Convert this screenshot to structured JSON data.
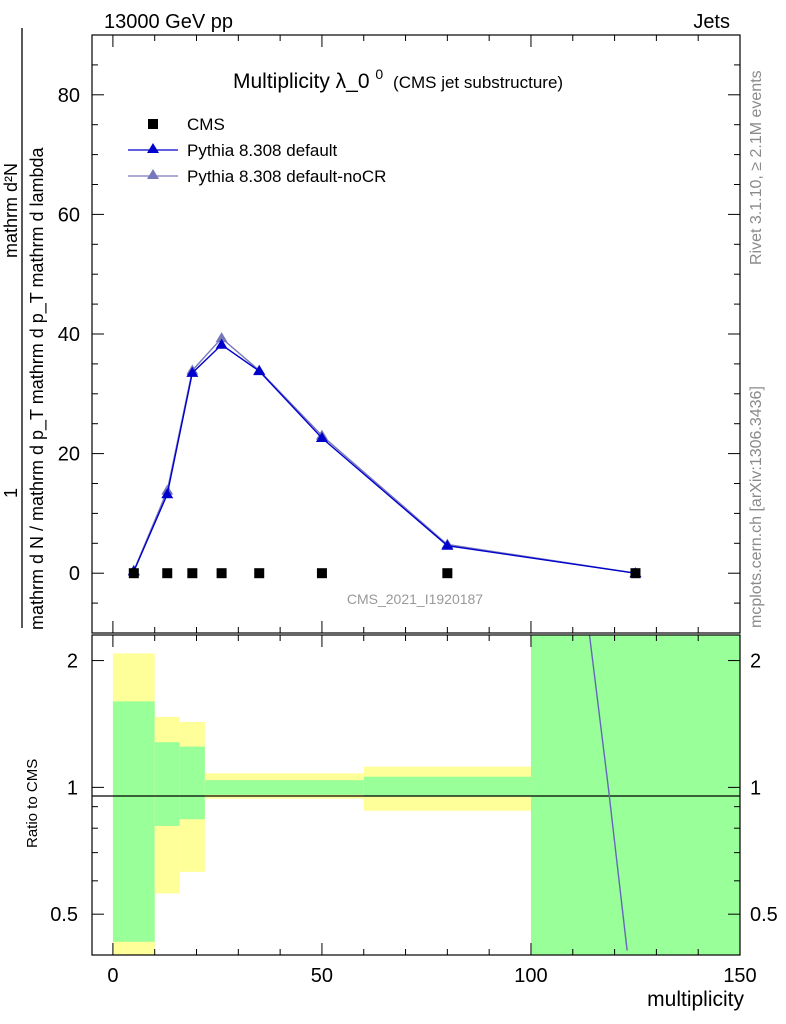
{
  "header": {
    "energy_label": "13000 GeV pp",
    "category_label": "Jets"
  },
  "side_text": {
    "rivet": "Rivet 3.1.10, ≥ 2.1M events",
    "mcplots": "mcplots.cern.ch [arXiv:1306.3436]"
  },
  "analysis_id": "CMS_2021_I1920187",
  "colors": {
    "data": "#000000",
    "pythia_default": "#0000cc",
    "pythia_nocr": "#7777bb",
    "band_inner": "#99ff99",
    "band_outer": "#ffff99"
  },
  "chart_data": [
    {
      "type": "line",
      "title_main": "Multiplicity λ_0",
      "title_sup": "0",
      "title_sub": "(CMS jet substructure)",
      "ylabel_top": "1",
      "ylabel_den": "mathrm d N / mathrm d p_T mathrm d p_T mathrm d lambda",
      "ylabel_num": "mathrm d²N",
      "xlim": [
        -5,
        150
      ],
      "ylim": [
        -10,
        90
      ],
      "yticks": [
        0,
        20,
        40,
        60,
        80
      ],
      "legend_position": "top-left",
      "series": [
        {
          "name": "CMS",
          "marker": "square",
          "x": [
            5,
            13,
            19,
            26,
            35,
            50,
            80,
            125
          ],
          "y": [
            0,
            0,
            0,
            0,
            0,
            0,
            0,
            0
          ]
        },
        {
          "name": "Pythia 8.308 default",
          "marker": "triangle",
          "x": [
            5,
            13,
            19,
            26,
            35,
            50,
            80,
            125
          ],
          "y": [
            0.3,
            13.2,
            33.5,
            38.2,
            33.8,
            22.6,
            4.6,
            0.0
          ]
        },
        {
          "name": "Pythia 8.308 default-noCR",
          "marker": "triangle",
          "x": [
            5,
            13,
            19,
            26,
            35,
            50,
            80,
            125
          ],
          "y": [
            0.4,
            13.8,
            33.9,
            39.3,
            33.9,
            23.0,
            4.8,
            0.0
          ]
        }
      ]
    },
    {
      "type": "area",
      "ylabel": "Ratio to CMS",
      "xlabel": "multiplicity",
      "xlim": [
        -5,
        150
      ],
      "ylim": [
        0.4,
        2.3
      ],
      "ytick_labels": [
        "0.5",
        "1",
        "2"
      ],
      "xtick_labels": [
        "0",
        "50",
        "100",
        "150"
      ],
      "bands": [
        {
          "x0": 0,
          "x1": 10,
          "inner": [
            0.43,
            1.6
          ],
          "outer": [
            0.35,
            2.08
          ]
        },
        {
          "x0": 10,
          "x1": 16,
          "inner": [
            0.81,
            1.28
          ],
          "outer": [
            0.56,
            1.47
          ]
        },
        {
          "x0": 16,
          "x1": 22,
          "inner": [
            0.84,
            1.25
          ],
          "outer": [
            0.63,
            1.43
          ]
        },
        {
          "x0": 22,
          "x1": 60,
          "inner": [
            0.96,
            1.04
          ],
          "outer": [
            0.94,
            1.08
          ]
        },
        {
          "x0": 60,
          "x1": 100,
          "inner": [
            0.95,
            1.06
          ],
          "outer": [
            0.88,
            1.12
          ]
        },
        {
          "x0": 100,
          "x1": 150,
          "inner": [
            0.38,
            2.3
          ],
          "outer": [
            0.38,
            2.3
          ]
        }
      ],
      "ratio_line": {
        "name": "Pythia 8.308 default",
        "x": [
          114,
          118.5,
          123
        ],
        "y": [
          2.3,
          1.0,
          0.41
        ]
      }
    }
  ]
}
